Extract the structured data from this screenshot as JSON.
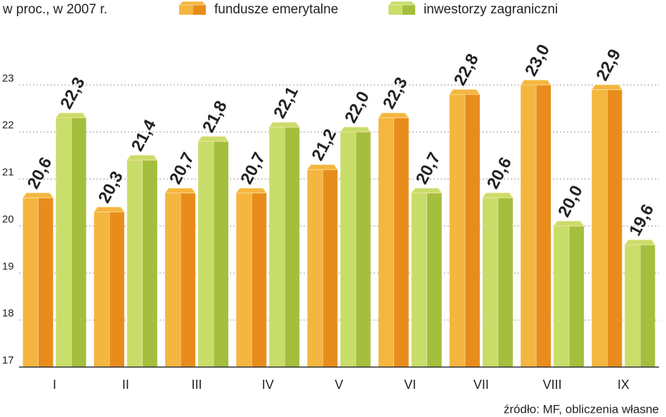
{
  "chart_data": {
    "type": "bar3d",
    "title": "w proc., w 2007 r.",
    "source": "źródło: MF, obliczenia własne",
    "categories": [
      "I",
      "II",
      "III",
      "IV",
      "V",
      "VI",
      "VII",
      "VIII",
      "IX"
    ],
    "series": [
      {
        "name": "fundusze emerytalne",
        "color": "#f4b63f",
        "side_color": "#e88d1c",
        "values": [
          20.6,
          20.3,
          20.7,
          20.7,
          21.2,
          22.3,
          22.8,
          23.0,
          22.9
        ],
        "value_labels": [
          "20,6",
          "20,3",
          "20,7",
          "20,7",
          "21,2",
          "22,3",
          "22,8",
          "23,0",
          "22,9"
        ],
        "value_label_colors": [
          "#111111",
          "#111111",
          "#111111",
          "#111111",
          "#111111",
          "#111111",
          "#111111",
          "#c8102e",
          "#111111"
        ]
      },
      {
        "name": "inwestorzy zagraniczni",
        "color": "#c9dd6a",
        "side_color": "#a4bf3d",
        "values": [
          22.3,
          21.4,
          21.8,
          22.1,
          22.0,
          20.7,
          20.6,
          20.0,
          19.6
        ],
        "value_labels": [
          "22,3",
          "21,4",
          "21,8",
          "22,1",
          "22,0",
          "20,7",
          "20,6",
          "20,0",
          "19,6"
        ],
        "value_label_colors": [
          "#111111",
          "#111111",
          "#111111",
          "#111111",
          "#111111",
          "#111111",
          "#111111",
          "#111111",
          "#111111"
        ]
      }
    ],
    "ylim": [
      17,
      24
    ],
    "yticks": [
      17,
      18,
      19,
      20,
      21,
      22,
      23
    ],
    "grid": true
  }
}
